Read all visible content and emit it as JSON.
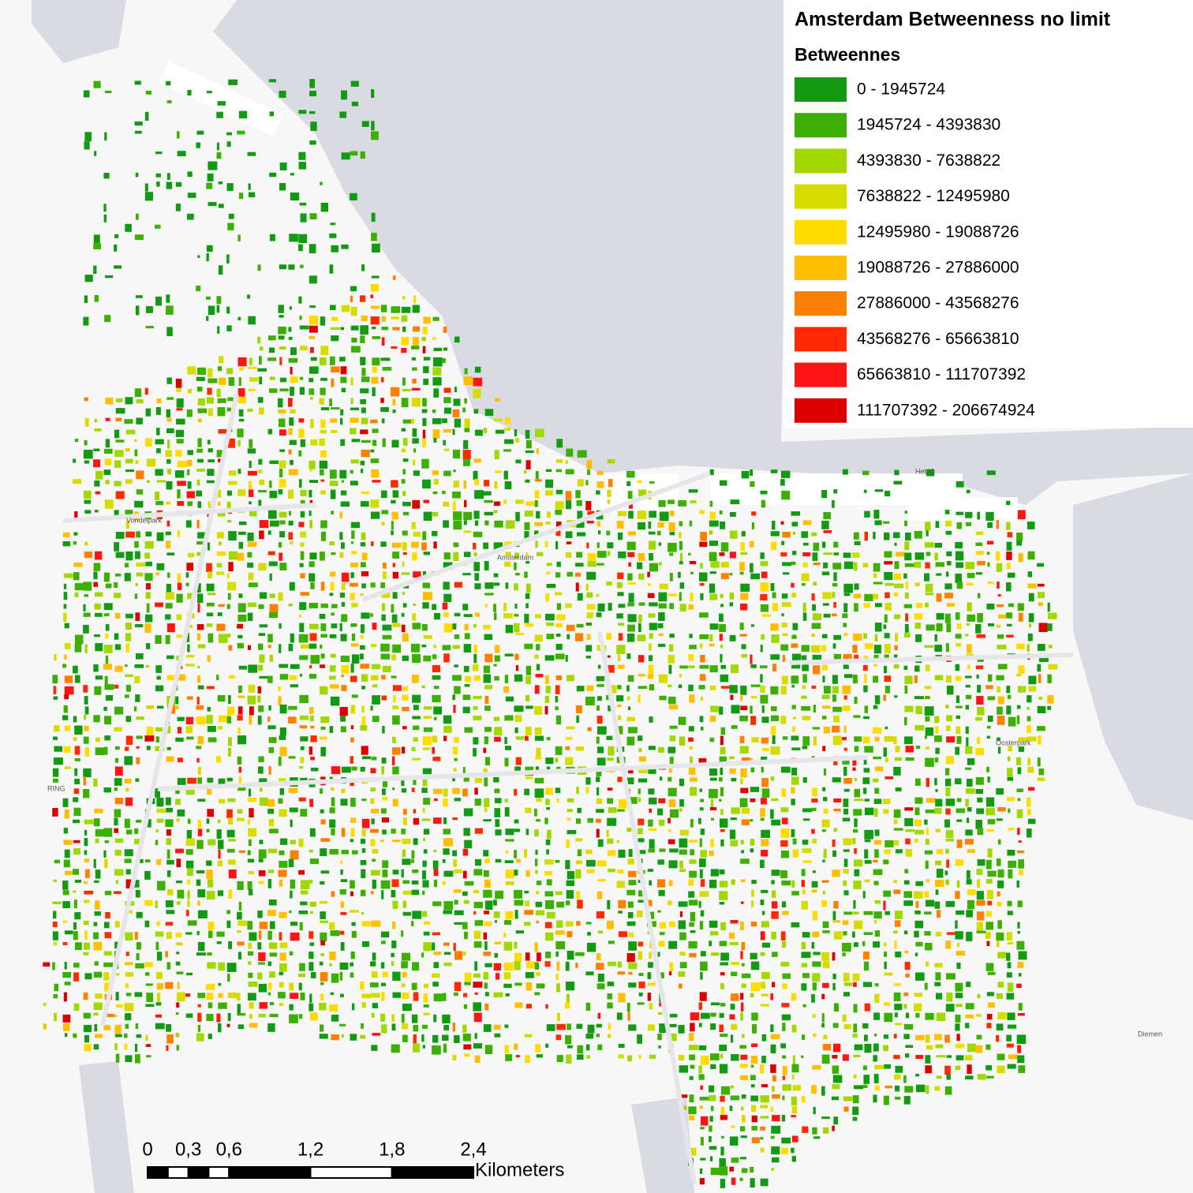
{
  "legend": {
    "title": "Amsterdam Betweenness no limit",
    "subtitle": "Betweennes",
    "items": [
      {
        "label": "0 - 1945724",
        "color": "#129a12"
      },
      {
        "label": "1945724 - 4393830",
        "color": "#3cb000"
      },
      {
        "label": "4393830 - 7638822",
        "color": "#a0d800"
      },
      {
        "label": "7638822 - 12495980",
        "color": "#d6dc00"
      },
      {
        "label": "12495980 - 19088726",
        "color": "#ffdc00"
      },
      {
        "label": "19088726 - 27886000",
        "color": "#ffbe00"
      },
      {
        "label": "27886000 - 43568276",
        "color": "#ff7f00"
      },
      {
        "label": "43568276 - 65663810",
        "color": "#ff2a00"
      },
      {
        "label": "65663810 - 111707392",
        "color": "#ff1414"
      },
      {
        "label": "111707392 - 206674924",
        "color": "#dc0000"
      }
    ]
  },
  "scale_bar": {
    "ticks": [
      "0",
      "0,3",
      "0,6",
      "1,2",
      "1,8",
      "2,4"
    ],
    "unit": "Kilometers"
  },
  "map_labels": [
    "Amsterdam",
    "Het IJ",
    "Diemen",
    "RING",
    "Oosterpark",
    "Vondelpark"
  ]
}
